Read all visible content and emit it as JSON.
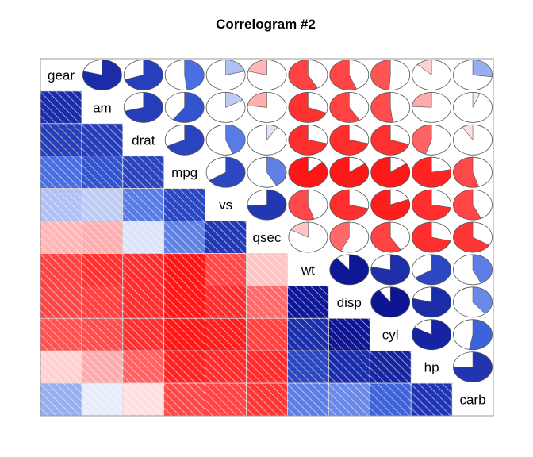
{
  "chart_data": {
    "type": "heatmap",
    "title": "Correlogram #2",
    "variables": [
      "gear",
      "am",
      "drat",
      "mpg",
      "vs",
      "qsec",
      "wt",
      "disp",
      "cyl",
      "hp",
      "carb"
    ],
    "lower_panel": "shade",
    "upper_panel": "pie",
    "color_scale": {
      "negative": "#ff0000",
      "zero": "#ffffff",
      "positive": "#000080"
    },
    "correlation_matrix": [
      [
        1.0,
        0.79,
        0.7,
        0.48,
        0.21,
        -0.21,
        -0.58,
        -0.56,
        -0.49,
        -0.13,
        0.27
      ],
      [
        0.79,
        1.0,
        0.71,
        0.6,
        0.17,
        -0.23,
        -0.69,
        -0.59,
        -0.52,
        -0.24,
        0.06
      ],
      [
        0.7,
        0.71,
        1.0,
        0.68,
        0.44,
        0.09,
        -0.71,
        -0.71,
        -0.7,
        -0.45,
        -0.09
      ],
      [
        0.48,
        0.6,
        0.68,
        1.0,
        0.66,
        0.42,
        -0.87,
        -0.85,
        -0.85,
        -0.78,
        -0.55
      ],
      [
        0.21,
        0.17,
        0.44,
        0.66,
        1.0,
        0.74,
        -0.55,
        -0.71,
        -0.81,
        -0.72,
        -0.57
      ],
      [
        -0.21,
        -0.23,
        0.09,
        0.42,
        0.74,
        1.0,
        -0.17,
        -0.43,
        -0.59,
        -0.71,
        -0.66
      ],
      [
        -0.58,
        -0.69,
        -0.71,
        -0.87,
        -0.55,
        -0.17,
        1.0,
        0.89,
        0.78,
        0.66,
        0.43
      ],
      [
        -0.56,
        -0.59,
        -0.71,
        -0.85,
        -0.71,
        -0.43,
        0.89,
        1.0,
        0.9,
        0.79,
        0.39
      ],
      [
        -0.49,
        -0.52,
        -0.7,
        -0.85,
        -0.81,
        -0.59,
        0.78,
        0.9,
        1.0,
        0.83,
        0.53
      ],
      [
        -0.13,
        -0.24,
        -0.45,
        -0.78,
        -0.72,
        -0.71,
        0.66,
        0.79,
        0.83,
        1.0,
        0.75
      ],
      [
        0.27,
        0.06,
        -0.09,
        -0.55,
        -0.57,
        -0.66,
        0.43,
        0.39,
        0.53,
        0.75,
        1.0
      ]
    ]
  }
}
